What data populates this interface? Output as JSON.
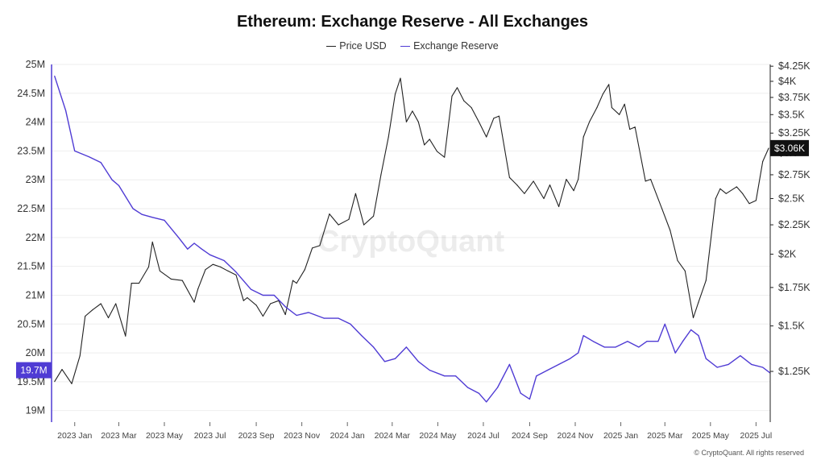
{
  "chart_data": {
    "type": "line",
    "title": "Ethereum: Exchange Reserve - All Exchanges",
    "legend": {
      "placement": "top-center"
    },
    "watermark": "CryptoQuant",
    "copyright": "© CryptoQuant. All rights reserved",
    "grid": {
      "horizontal": true,
      "vertical": false
    },
    "x_axis": {
      "range": [
        "2022-12-01",
        "2025-07-20"
      ],
      "ticks": [
        {
          "date": "2023-01-01",
          "label": "2023 Jan"
        },
        {
          "date": "2023-03-01",
          "label": "2023 Mar"
        },
        {
          "date": "2023-05-01",
          "label": "2023 May"
        },
        {
          "date": "2023-07-01",
          "label": "2023 Jul"
        },
        {
          "date": "2023-09-01",
          "label": "2023 Sep"
        },
        {
          "date": "2023-11-01",
          "label": "2023 Nov"
        },
        {
          "date": "2024-01-01",
          "label": "2024 Jan"
        },
        {
          "date": "2024-03-01",
          "label": "2024 Mar"
        },
        {
          "date": "2024-05-01",
          "label": "2024 May"
        },
        {
          "date": "2024-07-01",
          "label": "2024 Jul"
        },
        {
          "date": "2024-09-01",
          "label": "2024 Sep"
        },
        {
          "date": "2024-11-01",
          "label": "2024 Nov"
        },
        {
          "date": "2025-01-01",
          "label": "2025 Jan"
        },
        {
          "date": "2025-03-01",
          "label": "2025 Mar"
        },
        {
          "date": "2025-05-01",
          "label": "2025 May"
        },
        {
          "date": "2025-07-01",
          "label": "2025 Jul"
        }
      ]
    },
    "y_left": {
      "range": [
        18.8,
        25.0
      ],
      "unit": "M",
      "ticks": [
        {
          "value": 19.0,
          "label": "19M"
        },
        {
          "value": 19.5,
          "label": "19.5M"
        },
        {
          "value": 20.0,
          "label": "20M"
        },
        {
          "value": 20.5,
          "label": "20.5M"
        },
        {
          "value": 21.0,
          "label": "21M"
        },
        {
          "value": 21.5,
          "label": "21.5M"
        },
        {
          "value": 22.0,
          "label": "22M"
        },
        {
          "value": 22.5,
          "label": "22.5M"
        },
        {
          "value": 23.0,
          "label": "23M"
        },
        {
          "value": 23.5,
          "label": "23.5M"
        },
        {
          "value": 24.0,
          "label": "24M"
        },
        {
          "value": 24.5,
          "label": "24.5M"
        },
        {
          "value": 25.0,
          "label": "25M"
        }
      ],
      "current": {
        "value": 19.7,
        "label": "19.7M",
        "color": "#4F3BD4"
      }
    },
    "y_right": {
      "scale": "log",
      "range": [
        1020,
        4280
      ],
      "ticks": [
        {
          "value": 1250,
          "label": "$1.25K"
        },
        {
          "value": 1500,
          "label": "$1.5K"
        },
        {
          "value": 1750,
          "label": "$1.75K"
        },
        {
          "value": 2000,
          "label": "$2K"
        },
        {
          "value": 2250,
          "label": "$2.25K"
        },
        {
          "value": 2500,
          "label": "$2.5K"
        },
        {
          "value": 2750,
          "label": "$2.75K"
        },
        {
          "value": 3000,
          "label": "$3K"
        },
        {
          "value": 3250,
          "label": "$3.25K"
        },
        {
          "value": 3500,
          "label": "$3.5K"
        },
        {
          "value": 3750,
          "label": "$3.75K"
        },
        {
          "value": 4000,
          "label": "$4K"
        },
        {
          "value": 4250,
          "label": "$4.25K"
        }
      ],
      "current": {
        "value": 3060,
        "label": "$3.06K",
        "color": "#111111"
      }
    },
    "series": [
      {
        "name": "Price USD",
        "axis": "right",
        "color": "#222222",
        "x": [
          "2022-12-05",
          "2022-12-15",
          "2022-12-28",
          "2023-01-08",
          "2023-01-15",
          "2023-01-25",
          "2023-02-05",
          "2023-02-15",
          "2023-02-25",
          "2023-03-10",
          "2023-03-18",
          "2023-03-28",
          "2023-04-10",
          "2023-04-15",
          "2023-04-25",
          "2023-05-10",
          "2023-05-25",
          "2023-06-10",
          "2023-06-15",
          "2023-06-25",
          "2023-07-05",
          "2023-07-15",
          "2023-07-25",
          "2023-08-05",
          "2023-08-15",
          "2023-08-20",
          "2023-09-01",
          "2023-09-10",
          "2023-09-20",
          "2023-10-01",
          "2023-10-10",
          "2023-10-20",
          "2023-10-25",
          "2023-11-05",
          "2023-11-15",
          "2023-11-25",
          "2023-12-08",
          "2023-12-20",
          "2024-01-03",
          "2024-01-12",
          "2024-01-23",
          "2024-02-05",
          "2024-02-15",
          "2024-02-25",
          "2024-03-05",
          "2024-03-12",
          "2024-03-20",
          "2024-03-28",
          "2024-04-05",
          "2024-04-13",
          "2024-04-20",
          "2024-04-30",
          "2024-05-10",
          "2024-05-20",
          "2024-05-27",
          "2024-06-05",
          "2024-06-15",
          "2024-06-25",
          "2024-07-05",
          "2024-07-15",
          "2024-07-22",
          "2024-08-05",
          "2024-08-15",
          "2024-08-25",
          "2024-09-06",
          "2024-09-20",
          "2024-09-28",
          "2024-10-10",
          "2024-10-20",
          "2024-10-30",
          "2024-11-05",
          "2024-11-12",
          "2024-11-20",
          "2024-11-30",
          "2024-12-08",
          "2024-12-16",
          "2024-12-20",
          "2024-12-30",
          "2025-01-06",
          "2025-01-13",
          "2025-01-20",
          "2025-02-03",
          "2025-02-10",
          "2025-02-25",
          "2025-03-08",
          "2025-03-18",
          "2025-03-28",
          "2025-04-08",
          "2025-04-15",
          "2025-04-25",
          "2025-05-08",
          "2025-05-14",
          "2025-05-22",
          "2025-06-05",
          "2025-06-13",
          "2025-06-22",
          "2025-07-01",
          "2025-07-10",
          "2025-07-18"
        ],
        "values": [
          1200,
          1260,
          1190,
          1330,
          1560,
          1600,
          1640,
          1550,
          1640,
          1440,
          1780,
          1780,
          1900,
          2100,
          1870,
          1810,
          1800,
          1650,
          1740,
          1880,
          1920,
          1900,
          1870,
          1840,
          1660,
          1680,
          1630,
          1560,
          1640,
          1660,
          1570,
          1800,
          1780,
          1880,
          2050,
          2070,
          2350,
          2250,
          2300,
          2550,
          2250,
          2330,
          2750,
          3200,
          3800,
          4050,
          3400,
          3550,
          3400,
          3100,
          3170,
          3020,
          2950,
          3770,
          3900,
          3700,
          3600,
          3400,
          3200,
          3450,
          3480,
          2720,
          2640,
          2550,
          2680,
          2500,
          2640,
          2420,
          2700,
          2580,
          2700,
          3200,
          3400,
          3600,
          3800,
          3950,
          3600,
          3500,
          3650,
          3300,
          3330,
          2680,
          2700,
          2400,
          2200,
          1950,
          1870,
          1550,
          1650,
          1800,
          2500,
          2600,
          2550,
          2620,
          2550,
          2450,
          2480,
          2900,
          3060
        ]
      },
      {
        "name": "Exchange Reserve",
        "axis": "left",
        "color": "#4F3BD4",
        "x": [
          "2022-12-05",
          "2022-12-20",
          "2023-01-01",
          "2023-01-20",
          "2023-02-05",
          "2023-02-20",
          "2023-03-01",
          "2023-03-20",
          "2023-04-01",
          "2023-04-15",
          "2023-05-01",
          "2023-05-20",
          "2023-06-01",
          "2023-06-10",
          "2023-06-20",
          "2023-07-01",
          "2023-07-20",
          "2023-08-05",
          "2023-08-25",
          "2023-09-10",
          "2023-09-25",
          "2023-10-10",
          "2023-10-25",
          "2023-11-10",
          "2023-12-01",
          "2023-12-20",
          "2024-01-05",
          "2024-01-20",
          "2024-02-05",
          "2024-02-20",
          "2024-03-05",
          "2024-03-20",
          "2024-04-05",
          "2024-04-20",
          "2024-05-10",
          "2024-05-25",
          "2024-06-10",
          "2024-06-25",
          "2024-07-05",
          "2024-07-20",
          "2024-08-05",
          "2024-08-20",
          "2024-09-01",
          "2024-09-10",
          "2024-09-25",
          "2024-10-10",
          "2024-10-25",
          "2024-11-05",
          "2024-11-12",
          "2024-11-25",
          "2024-12-10",
          "2024-12-25",
          "2025-01-10",
          "2025-01-25",
          "2025-02-05",
          "2025-02-20",
          "2025-03-01",
          "2025-03-15",
          "2025-03-25",
          "2025-04-05",
          "2025-04-15",
          "2025-04-25",
          "2025-05-10",
          "2025-05-25",
          "2025-06-10",
          "2025-06-25",
          "2025-07-10",
          "2025-07-20"
        ],
        "values": [
          24.8,
          24.2,
          23.5,
          23.4,
          23.3,
          23.0,
          22.9,
          22.5,
          22.4,
          22.35,
          22.3,
          22.0,
          21.8,
          21.9,
          21.8,
          21.7,
          21.6,
          21.4,
          21.1,
          21.0,
          21.0,
          20.8,
          20.65,
          20.7,
          20.6,
          20.6,
          20.5,
          20.3,
          20.1,
          19.85,
          19.9,
          20.1,
          19.85,
          19.7,
          19.6,
          19.6,
          19.4,
          19.3,
          19.15,
          19.4,
          19.8,
          19.3,
          19.2,
          19.6,
          19.7,
          19.8,
          19.9,
          20.0,
          20.3,
          20.2,
          20.1,
          20.1,
          20.2,
          20.1,
          20.2,
          20.2,
          20.5,
          20.0,
          20.2,
          20.4,
          20.3,
          19.9,
          19.75,
          19.8,
          19.95,
          19.8,
          19.75,
          19.65
        ]
      }
    ]
  }
}
